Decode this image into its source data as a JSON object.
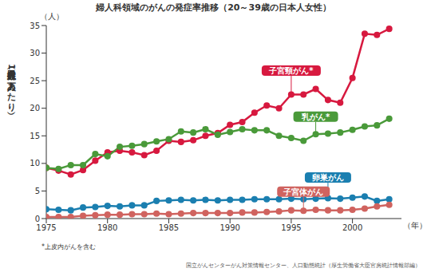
{
  "chart_data": {
    "type": "line",
    "title": "婦人科領域のがんの発症率推移（20～39歳の日本人女性）",
    "ylabel": "発症人数（人口10万人あたり）",
    "y_unit": "（人）",
    "x_unit": "（年）",
    "note": "*上皮内がんを含む",
    "source": "国立がんセンターがん対策情報センター、人口動態統計（厚生労働省大臣官房統計情報部編）",
    "x": [
      1975,
      1976,
      1977,
      1978,
      1979,
      1980,
      1981,
      1982,
      1983,
      1984,
      1985,
      1986,
      1987,
      1988,
      1989,
      1990,
      1991,
      1992,
      1993,
      1994,
      1995,
      1996,
      1997,
      1998,
      1999,
      2000,
      2001,
      2002,
      2003
    ],
    "xlim": [
      1975,
      2004
    ],
    "xticks": [
      1975,
      1980,
      1985,
      1990,
      1995,
      2000
    ],
    "ylim": [
      0,
      35
    ],
    "yticks": [
      0,
      5,
      10,
      15,
      20,
      25,
      30,
      35
    ],
    "grid": false,
    "marker": "circle",
    "series": [
      {
        "name": "子宮頸がん*",
        "color": "#d7193f",
        "values": [
          9.2,
          8.7,
          8.0,
          8.8,
          10.5,
          12.0,
          12.3,
          12.0,
          11.5,
          12.3,
          14.1,
          13.9,
          14.2,
          15.0,
          15.5,
          17.0,
          17.5,
          19.2,
          20.5,
          20.0,
          22.5,
          22.5,
          23.5,
          21.5,
          21.0,
          25.5,
          33.5,
          33.3,
          34.4
        ]
      },
      {
        "name": "乳がん*",
        "color": "#4a9a3a",
        "values": [
          9.2,
          9.0,
          9.7,
          9.7,
          11.7,
          11.3,
          13.0,
          13.2,
          13.5,
          14.0,
          14.4,
          15.8,
          15.6,
          16.2,
          15.2,
          15.7,
          16.2,
          16.0,
          16.0,
          15.0,
          14.6,
          14.1,
          15.3,
          15.4,
          15.6,
          16.1,
          16.7,
          16.9,
          18.1
        ]
      },
      {
        "name": "卵巣がん",
        "color": "#1b7fb0",
        "values": [
          1.7,
          1.6,
          1.5,
          2.0,
          2.1,
          2.3,
          2.2,
          2.4,
          2.4,
          3.2,
          3.3,
          3.4,
          3.3,
          3.4,
          3.3,
          3.4,
          3.4,
          3.5,
          3.5,
          3.5,
          3.6,
          3.5,
          3.6,
          3.7,
          3.6,
          3.8,
          4.0,
          3.2,
          3.5
        ]
      },
      {
        "name": "子宮体がん",
        "color": "#d0635f",
        "values": [
          0.3,
          0.3,
          0.3,
          0.5,
          0.6,
          0.7,
          0.7,
          0.8,
          0.8,
          0.9,
          0.8,
          0.9,
          1.0,
          1.0,
          1.0,
          1.0,
          1.1,
          1.1,
          1.2,
          1.3,
          1.5,
          1.4,
          1.6,
          1.5,
          1.5,
          1.6,
          1.8,
          2.2,
          2.5
        ]
      }
    ]
  }
}
